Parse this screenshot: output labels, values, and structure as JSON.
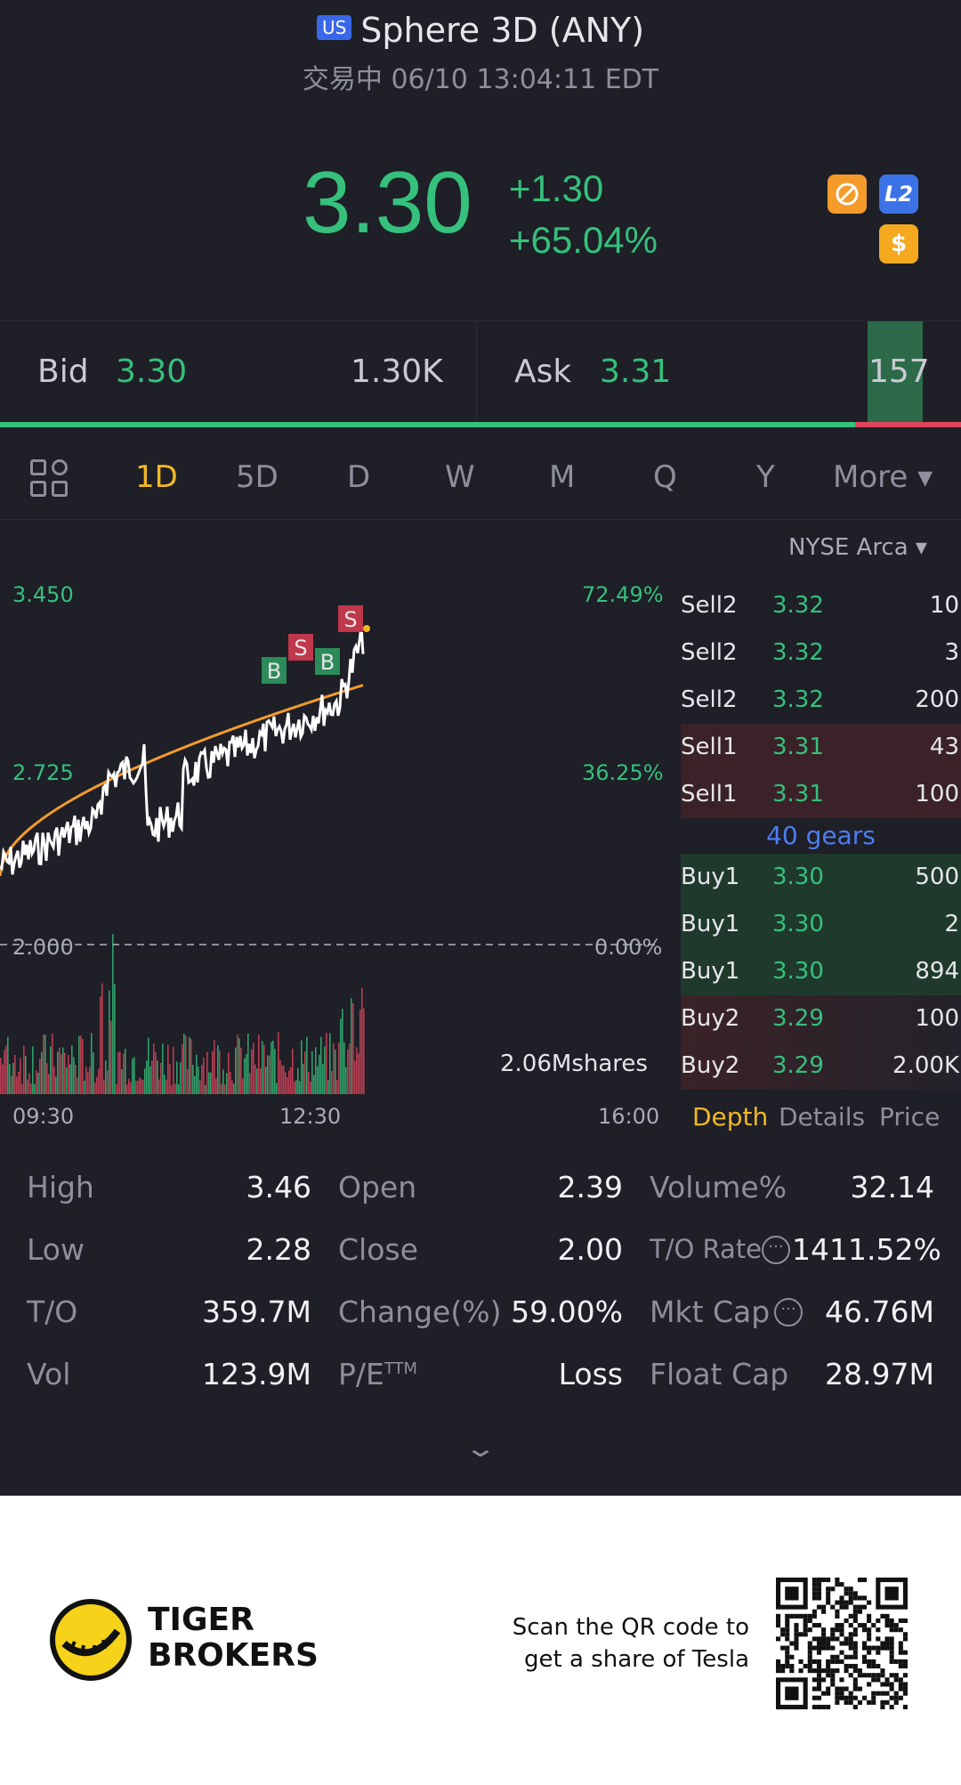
{
  "header": {
    "market_badge": "US",
    "title": "Sphere 3D (ANY)",
    "status": "交易中 06/10 13:04:11 EDT",
    "price": "3.30",
    "change": "+1.30",
    "change_pct": "+65.04%",
    "icons": [
      "no-entry-icon",
      "l2-icon",
      "dollar-icon"
    ],
    "l2_label": "L2",
    "dollar_label": "$"
  },
  "bidask": {
    "bid_label": "Bid",
    "bid_price": "3.30",
    "bid_size": "1.30K",
    "ask_label": "Ask",
    "ask_price": "3.31",
    "ask_size": "157",
    "bid_ratio": 0.89
  },
  "tabs": [
    "1D",
    "5D",
    "D",
    "W",
    "M",
    "Q",
    "Y"
  ],
  "tabs_active": "1D",
  "tabs_more": "More ▾",
  "chart": {
    "exchange": "NYSE Arca ▾",
    "y_top": "3.450",
    "y_mid": "2.725",
    "y_base": "2.000",
    "pct_top": "72.49%",
    "pct_mid": "36.25%",
    "pct_base": "0.00%",
    "volume_label": "2.06Mshares",
    "t_start": "09:30",
    "t_mid": "12:30",
    "t_end": "16:00",
    "markers": [
      "B",
      "S",
      "B",
      "S"
    ]
  },
  "depth": {
    "rows_sell": [
      {
        "side": "Sell2",
        "price": "3.32",
        "qty": "10"
      },
      {
        "side": "Sell2",
        "price": "3.32",
        "qty": "3"
      },
      {
        "side": "Sell2",
        "price": "3.32",
        "qty": "200"
      },
      {
        "side": "Sell1",
        "price": "3.31",
        "qty": "43"
      },
      {
        "side": "Sell1",
        "price": "3.31",
        "qty": "100"
      }
    ],
    "gears": "40 gears",
    "rows_buy": [
      {
        "side": "Buy1",
        "price": "3.30",
        "qty": "500"
      },
      {
        "side": "Buy1",
        "price": "3.30",
        "qty": "2"
      },
      {
        "side": "Buy1",
        "price": "3.30",
        "qty": "894"
      },
      {
        "side": "Buy2",
        "price": "3.29",
        "qty": "100"
      },
      {
        "side": "Buy2",
        "price": "3.29",
        "qty": "2.00K"
      }
    ],
    "tab_depth": "Depth",
    "tab_details": "Details",
    "tab_price": "Price"
  },
  "stats": {
    "high_label": "High",
    "high": "3.46",
    "low_label": "Low",
    "low": "2.28",
    "to_label": "T/O",
    "to": "359.7M",
    "vol_label": "Vol",
    "vol": "123.9M",
    "open_label": "Open",
    "open": "2.39",
    "close_label": "Close",
    "close": "2.00",
    "change_label": "Change(%)",
    "change": "59.00%",
    "pe_label": "P/E",
    "pe_sup": "TTM",
    "pe": "Loss",
    "volpct_label": "Volume%",
    "volpct": "32.14",
    "torate_label": "T/O Rate",
    "torate": "1411.52%",
    "mktcap_label": "Mkt Cap",
    "mktcap": "46.76M",
    "floatcap_label": "Float Cap",
    "floatcap": "28.97M"
  },
  "footer": {
    "brand_line1": "TIGER",
    "brand_line2": "BROKERS",
    "qr_line1": "Scan the QR code to",
    "qr_line2": "get a share of Tesla"
  },
  "colors": {
    "up": "#35c07c",
    "down": "#e0455d",
    "accent": "#f2b823",
    "link": "#4d7df2"
  }
}
